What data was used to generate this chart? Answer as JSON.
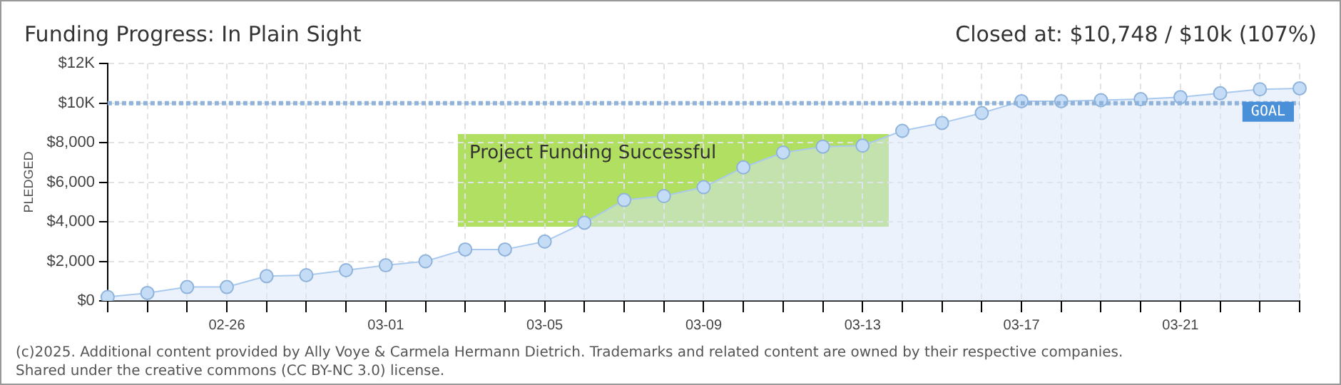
{
  "chart_data": {
    "type": "area",
    "title": "Funding Progress: In Plain Sight",
    "subtitle": "Closed at: $10,748 / $10k (107%)",
    "ylabel": "PLEDGED",
    "categories": [
      null,
      null,
      null,
      "02-26",
      null,
      null,
      null,
      "03-01",
      null,
      null,
      null,
      "03-05",
      null,
      null,
      null,
      "03-09",
      null,
      null,
      null,
      "03-13",
      null,
      null,
      null,
      "03-17",
      null,
      null,
      null,
      "03-21",
      null,
      null,
      null
    ],
    "series": [
      {
        "color": "#a9c9ee",
        "values": [
          200,
          400,
          700,
          700,
          1250,
          1300,
          1550,
          1800,
          2000,
          2600,
          2600,
          3000,
          3950,
          5100,
          5300,
          5750,
          6750,
          7500,
          7800,
          7850,
          8600,
          9000,
          9500,
          10100,
          10100,
          10150,
          10200,
          10300,
          10500,
          10700,
          10748
        ]
      }
    ],
    "ylim": [
      0,
      12000
    ],
    "yticks": [
      {
        "value": 0,
        "label": "$0"
      },
      {
        "value": 2000,
        "label": "$2,000"
      },
      {
        "value": 4000,
        "label": "$4,000"
      },
      {
        "value": 6000,
        "label": "$6,000"
      },
      {
        "value": 8000,
        "label": "$8,000"
      },
      {
        "value": 10000,
        "label": "$10K"
      },
      {
        "value": 12000,
        "label": "$12K"
      }
    ],
    "ref_lines": [
      {
        "axis": "y",
        "value": 10000,
        "label": "GOAL",
        "color": "#8fb3da",
        "line_style": "dotted"
      }
    ],
    "annotations": [
      "Project Funding Successful",
      "(c)2025. Additional content provided by Ally Voye & Carmela Hermann Dietrich. Trademarks and related content are owned by their respective companies.",
      "Shared under the creative commons (CC BY-NC 3.0) license."
    ],
    "grid": true,
    "legend": false,
    "marker": "circle"
  }
}
